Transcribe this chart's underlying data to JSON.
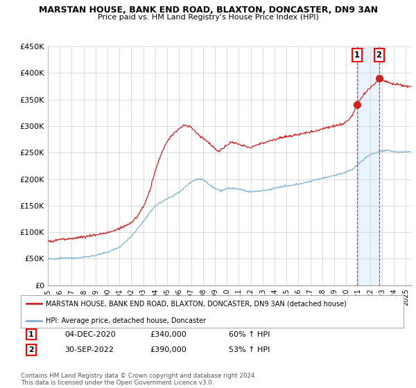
{
  "title": "MARSTAN HOUSE, BANK END ROAD, BLAXTON, DONCASTER, DN9 3AN",
  "subtitle": "Price paid vs. HM Land Registry's House Price Index (HPI)",
  "hpi_label": "HPI: Average price, detached house, Doncaster",
  "property_label": "MARSTAN HOUSE, BANK END ROAD, BLAXTON, DONCASTER, DN9 3AN (detached house)",
  "hpi_color": "#7bafd4",
  "property_color": "#cc2222",
  "ylim": [
    0,
    450000
  ],
  "yticks": [
    0,
    50000,
    100000,
    150000,
    200000,
    250000,
    300000,
    350000,
    400000,
    450000
  ],
  "ytick_labels": [
    "£0",
    "£50K",
    "£100K",
    "£150K",
    "£200K",
    "£250K",
    "£300K",
    "£350K",
    "£400K",
    "£450K"
  ],
  "xlim_start": 1995.0,
  "xlim_end": 2025.5,
  "xticks": [
    1995,
    1996,
    1997,
    1998,
    1999,
    2000,
    2001,
    2002,
    2003,
    2004,
    2005,
    2006,
    2007,
    2008,
    2009,
    2010,
    2011,
    2012,
    2013,
    2014,
    2015,
    2016,
    2017,
    2018,
    2019,
    2020,
    2021,
    2022,
    2023,
    2024,
    2025
  ],
  "transaction1": {
    "label": "1",
    "date": "04-DEC-2020",
    "price": 340000,
    "pct": "60%",
    "direction": "↑",
    "year": 2020.92
  },
  "transaction2": {
    "label": "2",
    "date": "30-SEP-2022",
    "price": 390000,
    "pct": "53%",
    "direction": "↑",
    "year": 2022.75
  },
  "copyright": "Contains HM Land Registry data © Crown copyright and database right 2024.\nThis data is licensed under the Open Government Licence v3.0.",
  "background_color": "#ffffff",
  "grid_color": "#cccccc",
  "shade_color": "#ddeeff"
}
